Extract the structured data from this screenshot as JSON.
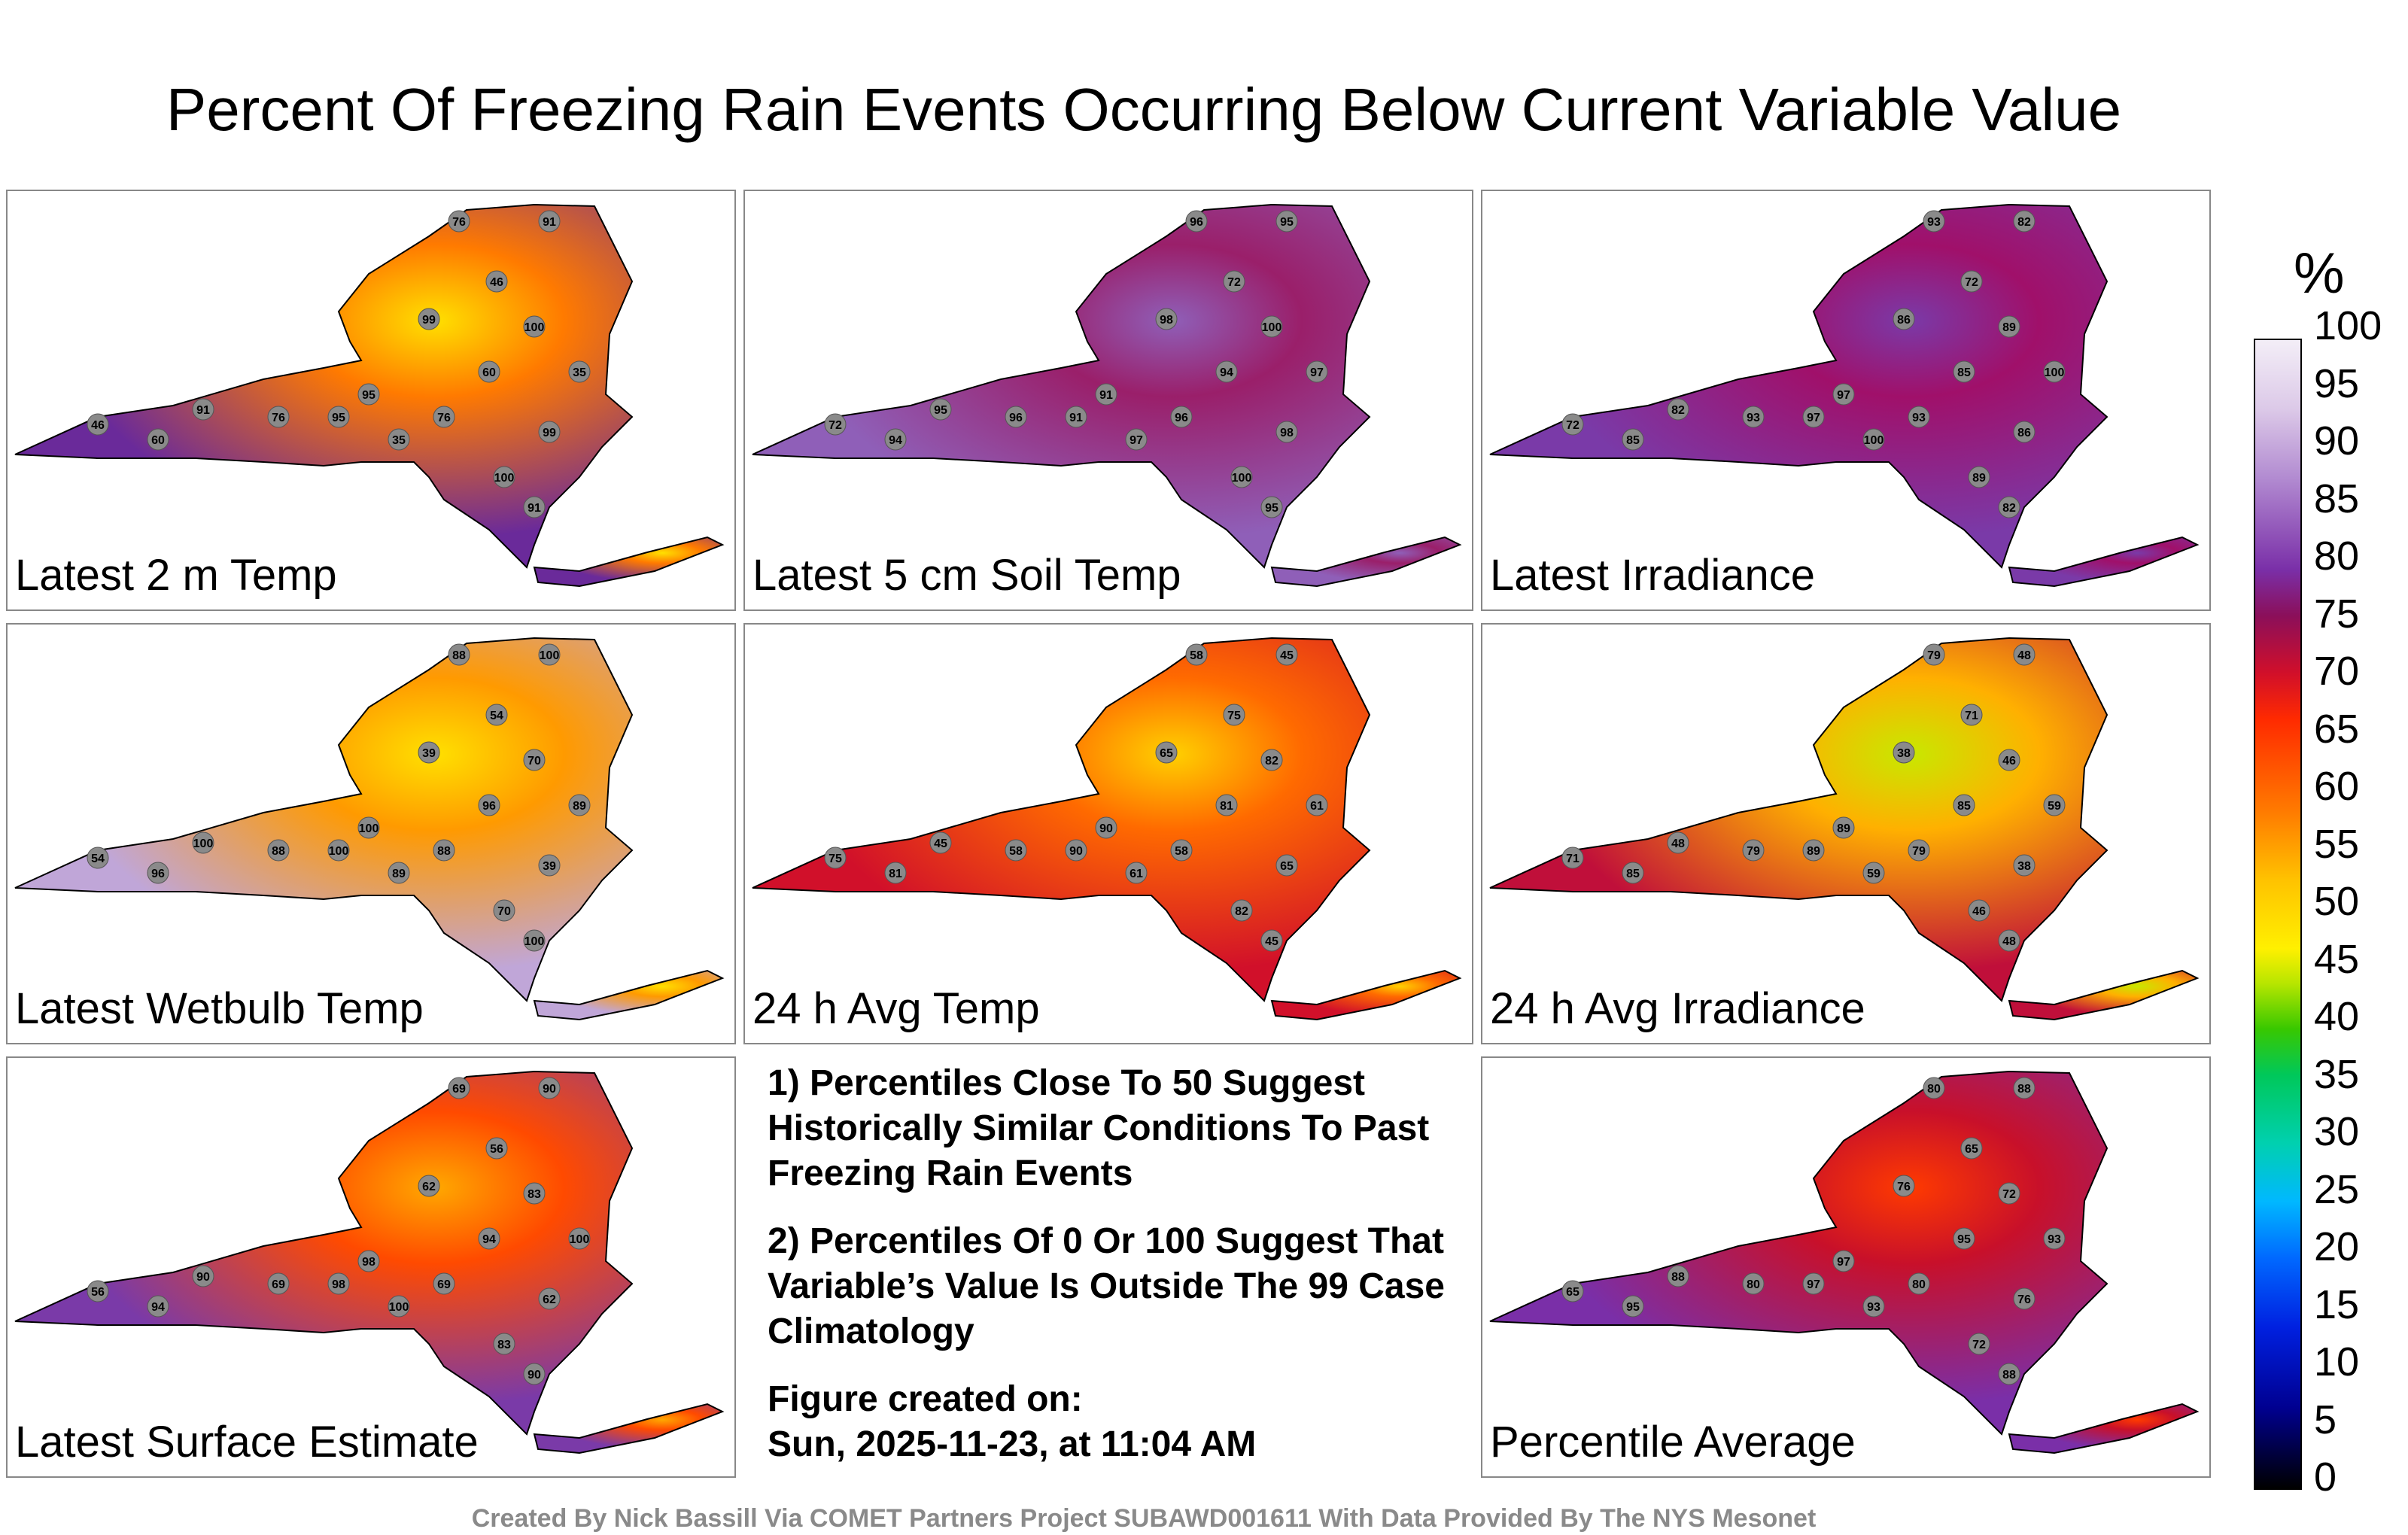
{
  "title": "Percent Of Freezing Rain Events Occurring Below Current Variable Value",
  "panels": [
    {
      "label": "Latest 2 m Temp",
      "colors": [
        "#6a2a9a",
        "#ff7a00",
        "#ffe000"
      ],
      "samples": [
        "76",
        "91",
        "46",
        "99",
        "100",
        "35",
        "60",
        "95"
      ]
    },
    {
      "label": "Latest 5 cm Soil Temp",
      "colors": [
        "#8f5fb8",
        "#9a1f6a",
        "#8f5fb8"
      ],
      "samples": [
        "96",
        "95",
        "72",
        "98",
        "100",
        "97",
        "94",
        "91"
      ]
    },
    {
      "label": "Latest Irradiance",
      "colors": [
        "#7a3aa8",
        "#a0106a",
        "#7a3aa8"
      ],
      "samples": [
        "93",
        "82",
        "72",
        "86",
        "89",
        "100",
        "85",
        "97"
      ]
    },
    {
      "label": "Latest Wetbulb Temp",
      "colors": [
        "#c0a6d8",
        "#ff9a00",
        "#ffe000"
      ],
      "samples": [
        "88",
        "100",
        "54",
        "39",
        "70",
        "89",
        "96",
        "100"
      ]
    },
    {
      "label": "24 h Avg Temp",
      "colors": [
        "#d1102a",
        "#ff6a00",
        "#ffd000"
      ],
      "samples": [
        "58",
        "45",
        "75",
        "65",
        "82",
        "61",
        "81",
        "90"
      ]
    },
    {
      "label": "24 h Avg Irradiance",
      "colors": [
        "#c00f3a",
        "#ffb000",
        "#c8e800"
      ],
      "samples": [
        "79",
        "48",
        "71",
        "38",
        "46",
        "59",
        "85",
        "89"
      ]
    },
    {
      "label": "Latest Surface Estimate",
      "colors": [
        "#7a3aa8",
        "#ff4a00",
        "#ffa800"
      ],
      "samples": [
        "69",
        "90",
        "56",
        "62",
        "83",
        "100",
        "94",
        "98"
      ]
    },
    {
      "label": "Percentile Average",
      "colors": [
        "#7a2fa8",
        "#c8102a",
        "#ff3a00"
      ],
      "samples": [
        "80",
        "88",
        "65",
        "76",
        "72",
        "93",
        "95",
        "97"
      ]
    }
  ],
  "notes": {
    "note1": "1) Percentiles Close To 50 Suggest Historically Similar Conditions To Past Freezing Rain Events",
    "note2": "2) Percentiles Of 0 Or 100 Suggest That Variable’s Value Is Outside The 99 Case Climatology",
    "created_label": "Figure created on:",
    "created_date": "Sun, 2025-11-23, at 11:04 AM"
  },
  "colorbar": {
    "unit": "%",
    "ticks": [
      "100",
      "95",
      "90",
      "85",
      "80",
      "75",
      "70",
      "65",
      "60",
      "55",
      "50",
      "45",
      "40",
      "35",
      "30",
      "25",
      "20",
      "15",
      "10",
      "5",
      "0"
    ]
  },
  "credit": "Created By Nick Bassill Via COMET Partners Project SUBAWD001611 With Data Provided By The NYS Mesonet"
}
